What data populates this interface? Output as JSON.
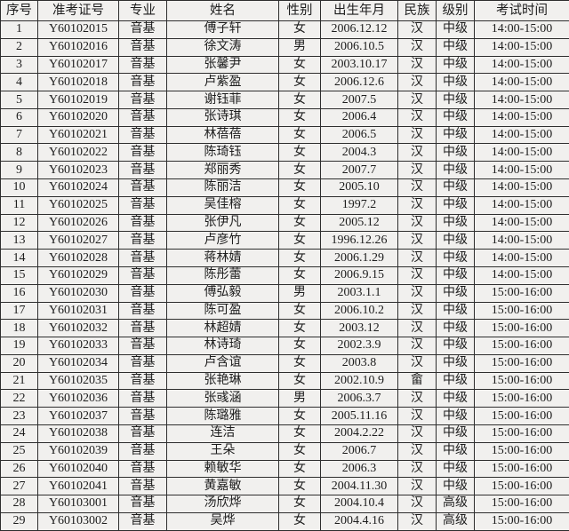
{
  "table": {
    "headers": [
      "序号",
      "准考证号",
      "专业",
      "姓名",
      "性别",
      "出生年月",
      "民族",
      "级别",
      "考试时间"
    ],
    "rows": [
      [
        "1",
        "Y60102015",
        "音基",
        "傅子轩",
        "女",
        "2006.12.12",
        "汉",
        "中级",
        "14:00-15:00"
      ],
      [
        "2",
        "Y60102016",
        "音基",
        "徐文涛",
        "男",
        "2006.10.5",
        "汉",
        "中级",
        "14:00-15:00"
      ],
      [
        "3",
        "Y60102017",
        "音基",
        "张馨尹",
        "女",
        "2003.10.17",
        "汉",
        "中级",
        "14:00-15:00"
      ],
      [
        "4",
        "Y60102018",
        "音基",
        "卢紫盈",
        "女",
        "2006.12.6",
        "汉",
        "中级",
        "14:00-15:00"
      ],
      [
        "5",
        "Y60102019",
        "音基",
        "谢钰菲",
        "女",
        "2007.5",
        "汉",
        "中级",
        "14:00-15:00"
      ],
      [
        "6",
        "Y60102020",
        "音基",
        "张诗琪",
        "女",
        "2006.4",
        "汉",
        "中级",
        "14:00-15:00"
      ],
      [
        "7",
        "Y60102021",
        "音基",
        "林蓓蓓",
        "女",
        "2006.5",
        "汉",
        "中级",
        "14:00-15:00"
      ],
      [
        "8",
        "Y60102022",
        "音基",
        "陈琦钰",
        "女",
        "2004.3",
        "汉",
        "中级",
        "14:00-15:00"
      ],
      [
        "9",
        "Y60102023",
        "音基",
        "郑丽秀",
        "女",
        "2007.7",
        "汉",
        "中级",
        "14:00-15:00"
      ],
      [
        "10",
        "Y60102024",
        "音基",
        "陈丽洁",
        "女",
        "2005.10",
        "汉",
        "中级",
        "14:00-15:00"
      ],
      [
        "11",
        "Y60102025",
        "音基",
        "吴佳榕",
        "女",
        "1997.2",
        "汉",
        "中级",
        "14:00-15:00"
      ],
      [
        "12",
        "Y60102026",
        "音基",
        "张伊凡",
        "女",
        "2005.12",
        "汉",
        "中级",
        "14:00-15:00"
      ],
      [
        "13",
        "Y60102027",
        "音基",
        "卢彦竹",
        "女",
        "1996.12.26",
        "汉",
        "中级",
        "14:00-15:00"
      ],
      [
        "14",
        "Y60102028",
        "音基",
        "蒋林婧",
        "女",
        "2006.1.29",
        "汉",
        "中级",
        "14:00-15:00"
      ],
      [
        "15",
        "Y60102029",
        "音基",
        "陈彤蕾",
        "女",
        "2006.9.15",
        "汉",
        "中级",
        "14:00-15:00"
      ],
      [
        "16",
        "Y60102030",
        "音基",
        "傅弘毅",
        "男",
        "2003.1.1",
        "汉",
        "中级",
        "15:00-16:00"
      ],
      [
        "17",
        "Y60102031",
        "音基",
        "陈可盈",
        "女",
        "2006.10.2",
        "汉",
        "中级",
        "15:00-16:00"
      ],
      [
        "18",
        "Y60102032",
        "音基",
        "林超婧",
        "女",
        "2003.12",
        "汉",
        "中级",
        "15:00-16:00"
      ],
      [
        "19",
        "Y60102033",
        "音基",
        "林诗琦",
        "女",
        "2002.3.9",
        "汉",
        "中级",
        "15:00-16:00"
      ],
      [
        "20",
        "Y60102034",
        "音基",
        "卢含谊",
        "女",
        "2003.8",
        "汉",
        "中级",
        "15:00-16:00"
      ],
      [
        "21",
        "Y60102035",
        "音基",
        "张艳琳",
        "女",
        "2002.10.9",
        "畲",
        "中级",
        "15:00-16:00"
      ],
      [
        "22",
        "Y60102036",
        "音基",
        "张彧涵",
        "男",
        "2006.3.7",
        "汉",
        "中级",
        "15:00-16:00"
      ],
      [
        "23",
        "Y60102037",
        "音基",
        "陈璐雅",
        "女",
        "2005.11.16",
        "汉",
        "中级",
        "15:00-16:00"
      ],
      [
        "24",
        "Y60102038",
        "音基",
        "连洁",
        "女",
        "2004.2.22",
        "汉",
        "中级",
        "15:00-16:00"
      ],
      [
        "25",
        "Y60102039",
        "音基",
        "王朵",
        "女",
        "2006.7",
        "汉",
        "中级",
        "15:00-16:00"
      ],
      [
        "26",
        "Y60102040",
        "音基",
        "赖敏华",
        "女",
        "2006.3",
        "汉",
        "中级",
        "15:00-16:00"
      ],
      [
        "27",
        "Y60102041",
        "音基",
        "黄嘉敏",
        "女",
        "2004.11.30",
        "汉",
        "中级",
        "15:00-16:00"
      ],
      [
        "28",
        "Y60103001",
        "音基",
        "汤欣烨",
        "女",
        "2004.10.4",
        "汉",
        "高级",
        "15:00-16:00"
      ],
      [
        "29",
        "Y60103002",
        "音基",
        "吴烨",
        "女",
        "2004.4.16",
        "汉",
        "高级",
        "15:00-16:00"
      ]
    ]
  },
  "colors": {
    "background": "#f1f0ee",
    "border": "#2e2e2e",
    "text": "#1d1d1d"
  }
}
